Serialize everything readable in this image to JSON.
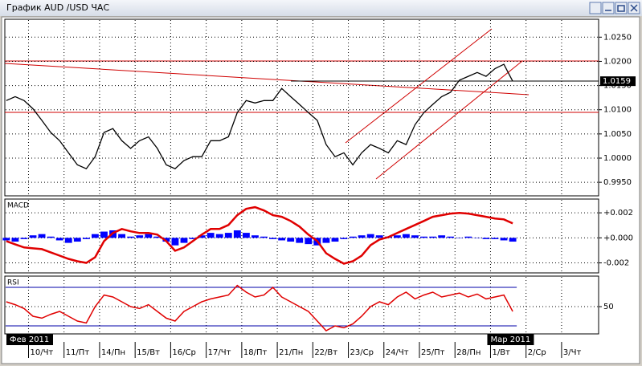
{
  "window_title": "График AUD /USD ЧАС",
  "date_labels": [
    "Фев 2011",
    "Мар 2011"
  ],
  "chart_data": [
    {
      "type": "line",
      "color": "#000000",
      "x": [
        -15,
        -9,
        -3,
        3,
        9,
        15,
        21,
        27,
        33,
        39,
        45,
        51,
        57,
        63,
        69,
        75,
        81,
        87,
        93,
        99,
        105,
        111,
        117,
        123,
        129,
        135,
        141,
        147,
        153,
        159,
        165,
        171,
        177,
        183,
        189,
        195,
        201,
        207,
        213,
        219,
        225,
        231,
        237,
        243,
        249,
        255,
        261,
        267,
        273,
        279,
        285,
        291,
        297,
        303,
        309,
        315,
        321,
        327
      ],
      "values": [
        1.0119,
        1.0127,
        1.0119,
        1.0102,
        1.0078,
        1.0053,
        1.0036,
        1.0011,
        0.9986,
        0.9978,
        1.0003,
        1.0053,
        1.0061,
        1.0036,
        1.002,
        1.0036,
        1.0044,
        1.002,
        0.9986,
        0.9978,
        0.9995,
        1.0003,
        1.0003,
        1.0036,
        1.0036,
        1.0044,
        1.0094,
        1.0119,
        1.0114,
        1.0119,
        1.0119,
        1.0144,
        1.0127,
        1.0111,
        1.0094,
        1.0078,
        1.0028,
        1.0003,
        1.0011,
        0.9986,
        1.0011,
        1.0028,
        1.002,
        1.0011,
        1.0036,
        1.0028,
        1.0069,
        1.0094,
        1.0111,
        1.0127,
        1.0136,
        1.0161,
        1.0169,
        1.0177,
        1.0169,
        1.0185,
        1.0194,
        1.0159
      ],
      "xlim": [
        -16,
        385
      ],
      "ylim": [
        0.9922,
        1.0287
      ],
      "yticks": [
        {
          "value": 0.995,
          "label": "0.9950"
        },
        {
          "value": 1.0,
          "label": "1.0000"
        },
        {
          "value": 1.005,
          "label": "1.0050"
        },
        {
          "value": 1.01,
          "label": "1.0100"
        },
        {
          "value": 1.015,
          "label": "1.0150"
        },
        {
          "value": 1.02,
          "label": "1.0200"
        },
        {
          "value": 1.025,
          "label": "1.0250"
        }
      ],
      "grid": true
    },
    {
      "type": "bar",
      "title": "MACD",
      "color": "#0000ff",
      "signal_color": "#e00000",
      "x": [
        -15,
        -9,
        -3,
        3,
        9,
        15,
        21,
        27,
        33,
        39,
        45,
        51,
        57,
        63,
        69,
        75,
        81,
        87,
        93,
        99,
        105,
        111,
        117,
        123,
        129,
        135,
        141,
        147,
        153,
        159,
        165,
        171,
        177,
        183,
        189,
        195,
        201,
        207,
        213,
        219,
        225,
        231,
        237,
        243,
        249,
        255,
        261,
        267,
        273,
        279,
        285,
        291,
        297,
        303,
        309,
        315,
        321,
        327
      ],
      "values": [
        -0.0002,
        -0.0003,
        -0.0001,
        0.0002,
        0.0003,
        0.0001,
        -0.0002,
        -0.0004,
        -0.0003,
        -0.0001,
        0.0003,
        0.0005,
        0.0006,
        0.0003,
        0.0001,
        0.0002,
        0.0003,
        0.0001,
        -0.0003,
        -0.0006,
        -0.0004,
        -0.0001,
        0.0002,
        0.0004,
        0.0003,
        0.0004,
        0.0006,
        0.0004,
        0.0002,
        0.0001,
        -0.0001,
        -0.0002,
        -0.0003,
        -0.0004,
        -0.0005,
        -0.0006,
        -0.0004,
        -0.0003,
        -0.0001,
        0.0001,
        0.0002,
        0.0003,
        0.0002,
        0.0001,
        0.0002,
        0.0003,
        0.0002,
        0.0001,
        0.0001,
        0.0002,
        0.0001,
        0,
        0.0001,
        0,
        -0.0001,
        -0.0001,
        -0.0002,
        -0.0003
      ],
      "signal": [
        -0.00026,
        -0.00052,
        -0.00077,
        -0.00084,
        -0.0009,
        -0.00116,
        -0.00142,
        -0.00168,
        -0.00187,
        -0.002,
        -0.00155,
        -0.00026,
        0.00039,
        0.00071,
        0.00052,
        0.00039,
        0.00039,
        0.00026,
        -0.00026,
        -0.00103,
        -0.00077,
        -0.00026,
        0.00026,
        0.00071,
        0.00071,
        0.00103,
        0.00181,
        0.00232,
        0.00245,
        0.00219,
        0.00181,
        0.00168,
        0.00135,
        0.0009,
        0.00026,
        -0.00026,
        -0.00123,
        -0.00168,
        -0.00206,
        -0.00187,
        -0.00142,
        -0.00058,
        -0.00013,
        6e-05,
        0.00039,
        0.00071,
        0.00103,
        0.00135,
        0.00168,
        0.00181,
        0.00194,
        0.002,
        0.00194,
        0.00181,
        0.00168,
        0.00155,
        0.00148,
        0.00116
      ],
      "xlim": [
        -16,
        385
      ],
      "ylim": [
        -0.0028,
        0.0031
      ],
      "yticks": [
        {
          "value": -0.002,
          "label": "-0.002"
        },
        {
          "value": 0,
          "label": "+0.000"
        },
        {
          "value": 0.002,
          "label": "+0.002"
        }
      ],
      "grid": true
    },
    {
      "type": "line",
      "title": "RSI",
      "color": "#e00000",
      "level_color": "#0000aa",
      "x": [
        -15,
        -9,
        -3,
        3,
        9,
        15,
        21,
        27,
        33,
        39,
        45,
        51,
        57,
        63,
        69,
        75,
        81,
        87,
        93,
        99,
        105,
        111,
        117,
        123,
        129,
        135,
        141,
        147,
        153,
        159,
        165,
        171,
        177,
        183,
        189,
        195,
        201,
        207,
        213,
        219,
        225,
        231,
        237,
        243,
        249,
        255,
        261,
        267,
        273,
        279,
        285,
        291,
        297,
        303,
        309,
        315,
        321,
        327
      ],
      "values": [
        55,
        52,
        48,
        40,
        38,
        42,
        45,
        40,
        35,
        33,
        50,
        62,
        60,
        55,
        50,
        48,
        52,
        45,
        38,
        35,
        45,
        50,
        55,
        58,
        60,
        62,
        72,
        65,
        60,
        62,
        70,
        60,
        55,
        50,
        45,
        35,
        25,
        30,
        28,
        32,
        40,
        50,
        55,
        52,
        60,
        65,
        58,
        62,
        65,
        60,
        62,
        64,
        60,
        63,
        58,
        60,
        62,
        45
      ],
      "levels": [
        30,
        70
      ],
      "xlim": [
        -16,
        385
      ],
      "ylim": [
        21.7,
        81.7
      ],
      "yticks": [
        50
      ],
      "xticks": [
        {
          "value": 0,
          "label": "10/Чт"
        },
        {
          "value": 24,
          "label": "11/Пт"
        },
        {
          "value": 48,
          "label": "14/Пн"
        },
        {
          "value": 72,
          "label": "15/Вт"
        },
        {
          "value": 96,
          "label": "16/Ср"
        },
        {
          "value": 120,
          "label": "17/Чт"
        },
        {
          "value": 144,
          "label": "18/Пт"
        },
        {
          "value": 168,
          "label": "21/Пн"
        },
        {
          "value": 192,
          "label": "22/Вт"
        },
        {
          "value": 216,
          "label": "23/Ср"
        },
        {
          "value": 240,
          "label": "24/Чт"
        },
        {
          "value": 264,
          "label": "25/Пт"
        },
        {
          "value": 288,
          "label": "28/Пн"
        },
        {
          "value": 312,
          "label": "1/Вт"
        },
        {
          "value": 336,
          "label": "2/Ср"
        },
        {
          "value": 360,
          "label": "3/Чт"
        }
      ],
      "grid": true
    }
  ]
}
